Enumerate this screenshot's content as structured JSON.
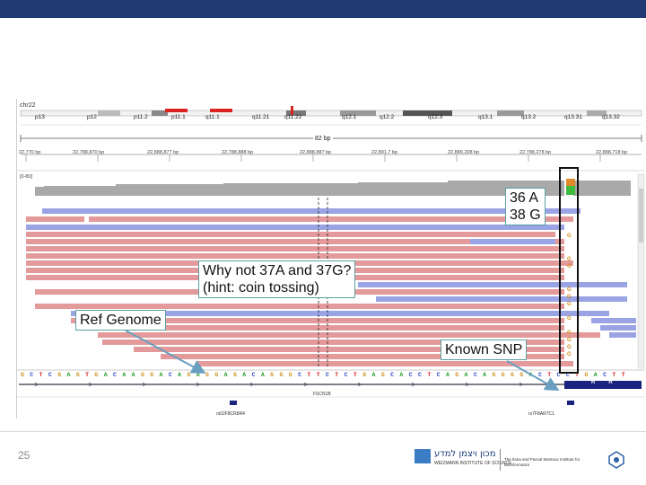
{
  "igv": {
    "chromosome": "chr22",
    "bands": [
      "p13",
      "p12",
      "p11.2",
      "p11.1",
      "q11.1",
      "q11.21",
      "q11.22",
      "q12.1",
      "q12.2",
      "q12.3",
      "q13.1",
      "q13.2",
      "q13.31",
      "q13.32"
    ],
    "span_label": "82 bp",
    "coords": [
      "22,770 bp",
      "22,788,870 bp",
      "22,888,877 bp",
      "22,788,888 bp",
      "22,888,887 bp",
      "22,891,7 bp",
      "22,889,208 bp",
      "22,788,278 bp",
      "22,888,718 bp"
    ],
    "coverage_label": "[0-80]",
    "read_bases": [
      "G",
      "G",
      "G",
      "G",
      "G",
      "G",
      "G",
      "G",
      "G",
      "G",
      "G"
    ],
    "sequence": "GCTCGAGTGACAAGGACAGAGGAGACAGGGCTTCTCTGAGCACCTCAGACAGGGGACTCCTGACTT",
    "gene_label": "FSCN1B",
    "feature_labels": [
      "rs02F8CR8R4",
      "rs7F8AR7C1"
    ],
    "colors": {
      "A": "#2fa02f",
      "C": "#2b43c9",
      "G": "#d08f1a",
      "T": "#d42525",
      "read_forward": "#e49a9a",
      "read_reverse": "#9aa3e4",
      "coverage": "#a9a9a9"
    }
  },
  "annotations": {
    "allele_counts": [
      "36 A",
      "38 G"
    ],
    "question": [
      "Why not 37A and 37G?",
      "(hint: coin tossing)"
    ],
    "ref_genome": "Ref Genome",
    "known_snp": "Known SNP"
  },
  "footer": {
    "page_number": "25",
    "institute_name": "מכון ויצמן למדע",
    "institute_en": "WEIZMANN INSTITUTE OF SCIENCE",
    "center_name": "The Ilana and Pascal Mantoux Institute for Bioinformatics"
  }
}
